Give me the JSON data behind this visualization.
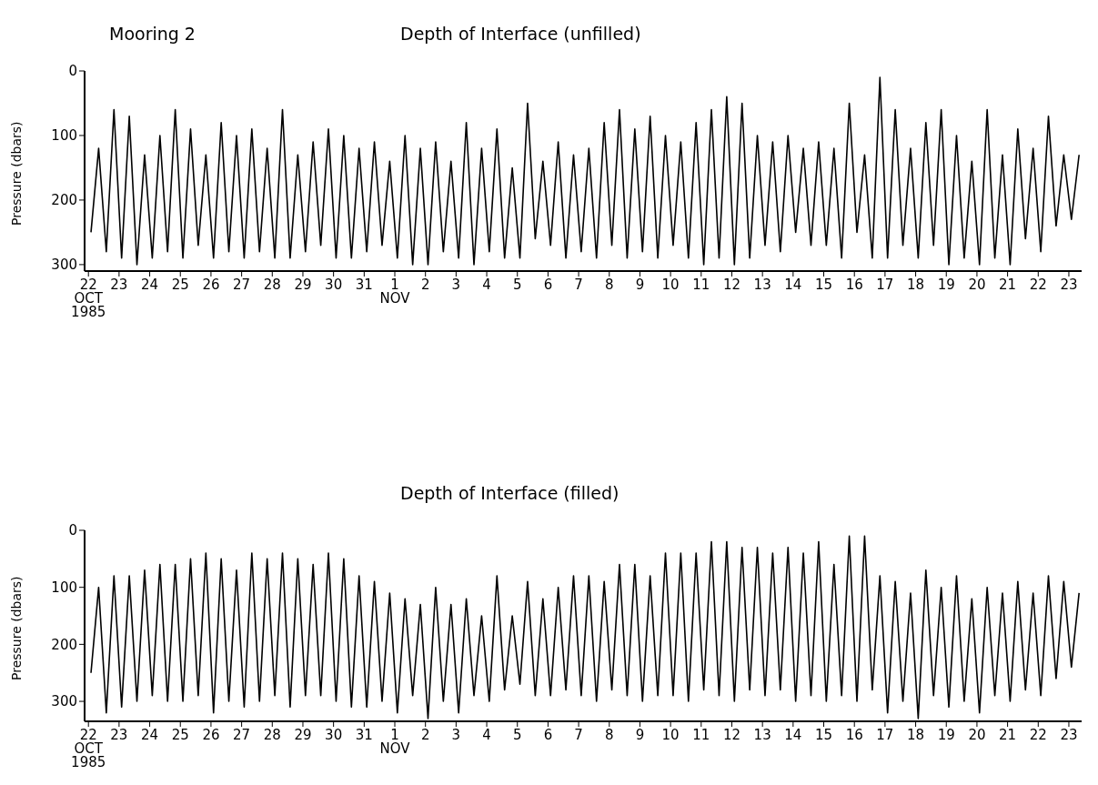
{
  "chart_data": [
    {
      "type": "line",
      "title": "Depth of Interface (unfilled)",
      "subtitle": "Mooring 2",
      "ylabel": "Pressure (dbars)",
      "marker": "none",
      "line_style": "solid",
      "xlim": [
        "1985-10-21T21:00",
        "1985-11-23T10:00"
      ],
      "ylim": [
        310,
        0
      ],
      "yticks": [
        0,
        100,
        200,
        300
      ],
      "xticks": [
        {
          "value": "1985-10-22",
          "label": "22\nOCT\n1985"
        },
        {
          "value": "1985-10-23",
          "label": "23"
        },
        {
          "value": "1985-10-24",
          "label": "24"
        },
        {
          "value": "1985-10-25",
          "label": "25"
        },
        {
          "value": "1985-10-26",
          "label": "26"
        },
        {
          "value": "1985-10-27",
          "label": "27"
        },
        {
          "value": "1985-10-28",
          "label": "28"
        },
        {
          "value": "1985-10-29",
          "label": "29"
        },
        {
          "value": "1985-10-30",
          "label": "30"
        },
        {
          "value": "1985-10-31",
          "label": "31"
        },
        {
          "value": "1985-11-01",
          "label": "1\nNOV"
        },
        {
          "value": "1985-11-02",
          "label": "2"
        },
        {
          "value": "1985-11-03",
          "label": "3"
        },
        {
          "value": "1985-11-04",
          "label": "4"
        },
        {
          "value": "1985-11-05",
          "label": "5"
        },
        {
          "value": "1985-11-06",
          "label": "6"
        },
        {
          "value": "1985-11-07",
          "label": "7"
        },
        {
          "value": "1985-11-08",
          "label": "8"
        },
        {
          "value": "1985-11-09",
          "label": "9"
        },
        {
          "value": "1985-11-10",
          "label": "10"
        },
        {
          "value": "1985-11-11",
          "label": "11"
        },
        {
          "value": "1985-11-12",
          "label": "12"
        },
        {
          "value": "1985-11-13",
          "label": "13"
        },
        {
          "value": "1985-11-14",
          "label": "14"
        },
        {
          "value": "1985-11-15",
          "label": "15"
        },
        {
          "value": "1985-11-16",
          "label": "16"
        },
        {
          "value": "1985-11-17",
          "label": "17"
        },
        {
          "value": "1985-11-18",
          "label": "18"
        },
        {
          "value": "1985-11-19",
          "label": "19"
        },
        {
          "value": "1985-11-20",
          "label": "20"
        },
        {
          "value": "1985-11-21",
          "label": "21"
        },
        {
          "value": "1985-11-22",
          "label": "22"
        },
        {
          "value": "1985-11-23",
          "label": "23"
        }
      ],
      "x": [
        "1985-10-22T02:00",
        "1985-10-22T08:00",
        "1985-10-22T14:00",
        "1985-10-22T20:00",
        "1985-10-23T02:00",
        "1985-10-23T08:00",
        "1985-10-23T14:00",
        "1985-10-23T20:00",
        "1985-10-24T02:00",
        "1985-10-24T08:00",
        "1985-10-24T14:00",
        "1985-10-24T20:00",
        "1985-10-25T02:00",
        "1985-10-25T08:00",
        "1985-10-25T14:00",
        "1985-10-25T20:00",
        "1985-10-26T02:00",
        "1985-10-26T08:00",
        "1985-10-26T14:00",
        "1985-10-26T20:00",
        "1985-10-27T02:00",
        "1985-10-27T08:00",
        "1985-10-27T14:00",
        "1985-10-27T20:00",
        "1985-10-28T02:00",
        "1985-10-28T08:00",
        "1985-10-28T14:00",
        "1985-10-28T20:00",
        "1985-10-29T02:00",
        "1985-10-29T08:00",
        "1985-10-29T14:00",
        "1985-10-29T20:00",
        "1985-10-30T02:00",
        "1985-10-30T08:00",
        "1985-10-30T14:00",
        "1985-10-30T20:00",
        "1985-10-31T02:00",
        "1985-10-31T08:00",
        "1985-10-31T14:00",
        "1985-10-31T20:00",
        "1985-11-01T02:00",
        "1985-11-01T08:00",
        "1985-11-01T14:00",
        "1985-11-01T20:00",
        "1985-11-02T02:00",
        "1985-11-02T08:00",
        "1985-11-02T14:00",
        "1985-11-02T20:00",
        "1985-11-03T02:00",
        "1985-11-03T08:00",
        "1985-11-03T14:00",
        "1985-11-03T20:00",
        "1985-11-04T02:00",
        "1985-11-04T08:00",
        "1985-11-04T14:00",
        "1985-11-04T20:00",
        "1985-11-05T02:00",
        "1985-11-05T08:00",
        "1985-11-05T14:00",
        "1985-11-05T20:00",
        "1985-11-06T02:00",
        "1985-11-06T08:00",
        "1985-11-06T14:00",
        "1985-11-06T20:00",
        "1985-11-07T02:00",
        "1985-11-07T08:00",
        "1985-11-07T14:00",
        "1985-11-07T20:00",
        "1985-11-08T02:00",
        "1985-11-08T08:00",
        "1985-11-08T14:00",
        "1985-11-08T20:00",
        "1985-11-09T02:00",
        "1985-11-09T08:00",
        "1985-11-09T14:00",
        "1985-11-09T20:00",
        "1985-11-10T02:00",
        "1985-11-10T08:00",
        "1985-11-10T14:00",
        "1985-11-10T20:00",
        "1985-11-11T02:00",
        "1985-11-11T08:00",
        "1985-11-11T14:00",
        "1985-11-11T20:00",
        "1985-11-12T02:00",
        "1985-11-12T08:00",
        "1985-11-12T14:00",
        "1985-11-12T20:00",
        "1985-11-13T02:00",
        "1985-11-13T08:00",
        "1985-11-13T14:00",
        "1985-11-13T20:00",
        "1985-11-14T02:00",
        "1985-11-14T08:00",
        "1985-11-14T14:00",
        "1985-11-14T20:00",
        "1985-11-15T02:00",
        "1985-11-15T08:00",
        "1985-11-15T14:00",
        "1985-11-15T20:00",
        "1985-11-16T02:00",
        "1985-11-16T08:00",
        "1985-11-16T14:00",
        "1985-11-16T20:00",
        "1985-11-17T02:00",
        "1985-11-17T08:00",
        "1985-11-17T14:00",
        "1985-11-17T20:00",
        "1985-11-18T02:00",
        "1985-11-18T08:00",
        "1985-11-18T14:00",
        "1985-11-18T20:00",
        "1985-11-19T02:00",
        "1985-11-19T08:00",
        "1985-11-19T14:00",
        "1985-11-19T20:00",
        "1985-11-20T02:00",
        "1985-11-20T08:00",
        "1985-11-20T14:00",
        "1985-11-20T20:00",
        "1985-11-21T02:00",
        "1985-11-21T08:00",
        "1985-11-21T14:00",
        "1985-11-21T20:00",
        "1985-11-22T02:00",
        "1985-11-22T08:00",
        "1985-11-22T14:00",
        "1985-11-22T20:00",
        "1985-11-23T02:00",
        "1985-11-23T08:00"
      ],
      "series": [
        {
          "color": "#000000",
          "values": [
            250,
            120,
            280,
            60,
            290,
            70,
            300,
            130,
            290,
            100,
            280,
            60,
            290,
            90,
            270,
            130,
            290,
            80,
            280,
            100,
            290,
            90,
            280,
            120,
            290,
            60,
            290,
            130,
            280,
            110,
            270,
            90,
            290,
            100,
            290,
            120,
            280,
            110,
            270,
            140,
            290,
            100,
            300,
            120,
            300,
            110,
            280,
            140,
            290,
            80,
            300,
            120,
            280,
            90,
            290,
            150,
            290,
            50,
            260,
            140,
            270,
            110,
            290,
            130,
            280,
            120,
            290,
            80,
            270,
            60,
            290,
            90,
            280,
            70,
            290,
            100,
            270,
            110,
            290,
            80,
            300,
            60,
            290,
            40,
            300,
            50,
            290,
            100,
            270,
            110,
            280,
            100,
            250,
            120,
            270,
            110,
            270,
            120,
            290,
            50,
            250,
            130,
            290,
            10,
            290,
            60,
            270,
            120,
            290,
            80,
            270,
            60,
            300,
            100,
            290,
            140,
            300,
            60,
            290,
            130,
            300,
            90,
            260,
            120,
            280,
            70,
            240,
            130,
            230,
            130
          ]
        }
      ]
    },
    {
      "type": "line",
      "title": "Depth of Interface (filled)",
      "ylabel": "Pressure (dbars)",
      "marker": "none",
      "line_style": "solid",
      "xlim": [
        "1985-10-21T21:00",
        "1985-11-23T10:00"
      ],
      "ylim": [
        335,
        0
      ],
      "yticks": [
        0,
        100,
        200,
        300
      ],
      "xticks": [
        {
          "value": "1985-10-22",
          "label": "22\nOCT\n1985"
        },
        {
          "value": "1985-10-23",
          "label": "23"
        },
        {
          "value": "1985-10-24",
          "label": "24"
        },
        {
          "value": "1985-10-25",
          "label": "25"
        },
        {
          "value": "1985-10-26",
          "label": "26"
        },
        {
          "value": "1985-10-27",
          "label": "27"
        },
        {
          "value": "1985-10-28",
          "label": "28"
        },
        {
          "value": "1985-10-29",
          "label": "29"
        },
        {
          "value": "1985-10-30",
          "label": "30"
        },
        {
          "value": "1985-10-31",
          "label": "31"
        },
        {
          "value": "1985-11-01",
          "label": "1\nNOV"
        },
        {
          "value": "1985-11-02",
          "label": "2"
        },
        {
          "value": "1985-11-03",
          "label": "3"
        },
        {
          "value": "1985-11-04",
          "label": "4"
        },
        {
          "value": "1985-11-05",
          "label": "5"
        },
        {
          "value": "1985-11-06",
          "label": "6"
        },
        {
          "value": "1985-11-07",
          "label": "7"
        },
        {
          "value": "1985-11-08",
          "label": "8"
        },
        {
          "value": "1985-11-09",
          "label": "9"
        },
        {
          "value": "1985-11-10",
          "label": "10"
        },
        {
          "value": "1985-11-11",
          "label": "11"
        },
        {
          "value": "1985-11-12",
          "label": "12"
        },
        {
          "value": "1985-11-13",
          "label": "13"
        },
        {
          "value": "1985-11-14",
          "label": "14"
        },
        {
          "value": "1985-11-15",
          "label": "15"
        },
        {
          "value": "1985-11-16",
          "label": "16"
        },
        {
          "value": "1985-11-17",
          "label": "17"
        },
        {
          "value": "1985-11-18",
          "label": "18"
        },
        {
          "value": "1985-11-19",
          "label": "19"
        },
        {
          "value": "1985-11-20",
          "label": "20"
        },
        {
          "value": "1985-11-21",
          "label": "21"
        },
        {
          "value": "1985-11-22",
          "label": "22"
        },
        {
          "value": "1985-11-23",
          "label": "23"
        }
      ],
      "x": [
        "1985-10-22T02:00",
        "1985-10-22T08:00",
        "1985-10-22T14:00",
        "1985-10-22T20:00",
        "1985-10-23T02:00",
        "1985-10-23T08:00",
        "1985-10-23T14:00",
        "1985-10-23T20:00",
        "1985-10-24T02:00",
        "1985-10-24T08:00",
        "1985-10-24T14:00",
        "1985-10-24T20:00",
        "1985-10-25T02:00",
        "1985-10-25T08:00",
        "1985-10-25T14:00",
        "1985-10-25T20:00",
        "1985-10-26T02:00",
        "1985-10-26T08:00",
        "1985-10-26T14:00",
        "1985-10-26T20:00",
        "1985-10-27T02:00",
        "1985-10-27T08:00",
        "1985-10-27T14:00",
        "1985-10-27T20:00",
        "1985-10-28T02:00",
        "1985-10-28T08:00",
        "1985-10-28T14:00",
        "1985-10-28T20:00",
        "1985-10-29T02:00",
        "1985-10-29T08:00",
        "1985-10-29T14:00",
        "1985-10-29T20:00",
        "1985-10-30T02:00",
        "1985-10-30T08:00",
        "1985-10-30T14:00",
        "1985-10-30T20:00",
        "1985-10-31T02:00",
        "1985-10-31T08:00",
        "1985-10-31T14:00",
        "1985-10-31T20:00",
        "1985-11-01T02:00",
        "1985-11-01T08:00",
        "1985-11-01T14:00",
        "1985-11-01T20:00",
        "1985-11-02T02:00",
        "1985-11-02T08:00",
        "1985-11-02T14:00",
        "1985-11-02T20:00",
        "1985-11-03T02:00",
        "1985-11-03T08:00",
        "1985-11-03T14:00",
        "1985-11-03T20:00",
        "1985-11-04T02:00",
        "1985-11-04T08:00",
        "1985-11-04T14:00",
        "1985-11-04T20:00",
        "1985-11-05T02:00",
        "1985-11-05T08:00",
        "1985-11-05T14:00",
        "1985-11-05T20:00",
        "1985-11-06T02:00",
        "1985-11-06T08:00",
        "1985-11-06T14:00",
        "1985-11-06T20:00",
        "1985-11-07T02:00",
        "1985-11-07T08:00",
        "1985-11-07T14:00",
        "1985-11-07T20:00",
        "1985-11-08T02:00",
        "1985-11-08T08:00",
        "1985-11-08T14:00",
        "1985-11-08T20:00",
        "1985-11-09T02:00",
        "1985-11-09T08:00",
        "1985-11-09T14:00",
        "1985-11-09T20:00",
        "1985-11-10T02:00",
        "1985-11-10T08:00",
        "1985-11-10T14:00",
        "1985-11-10T20:00",
        "1985-11-11T02:00",
        "1985-11-11T08:00",
        "1985-11-11T14:00",
        "1985-11-11T20:00",
        "1985-11-12T02:00",
        "1985-11-12T08:00",
        "1985-11-12T14:00",
        "1985-11-12T20:00",
        "1985-11-13T02:00",
        "1985-11-13T08:00",
        "1985-11-13T14:00",
        "1985-11-13T20:00",
        "1985-11-14T02:00",
        "1985-11-14T08:00",
        "1985-11-14T14:00",
        "1985-11-14T20:00",
        "1985-11-15T02:00",
        "1985-11-15T08:00",
        "1985-11-15T14:00",
        "1985-11-15T20:00",
        "1985-11-16T02:00",
        "1985-11-16T08:00",
        "1985-11-16T14:00",
        "1985-11-16T20:00",
        "1985-11-17T02:00",
        "1985-11-17T08:00",
        "1985-11-17T14:00",
        "1985-11-17T20:00",
        "1985-11-18T02:00",
        "1985-11-18T08:00",
        "1985-11-18T14:00",
        "1985-11-18T20:00",
        "1985-11-19T02:00",
        "1985-11-19T08:00",
        "1985-11-19T14:00",
        "1985-11-19T20:00",
        "1985-11-20T02:00",
        "1985-11-20T08:00",
        "1985-11-20T14:00",
        "1985-11-20T20:00",
        "1985-11-21T02:00",
        "1985-11-21T08:00",
        "1985-11-21T14:00",
        "1985-11-21T20:00",
        "1985-11-22T02:00",
        "1985-11-22T08:00",
        "1985-11-22T14:00",
        "1985-11-22T20:00",
        "1985-11-23T02:00",
        "1985-11-23T08:00"
      ],
      "series": [
        {
          "color": "#000000",
          "values": [
            250,
            100,
            320,
            80,
            310,
            80,
            300,
            70,
            290,
            60,
            300,
            60,
            300,
            50,
            290,
            40,
            320,
            50,
            300,
            70,
            310,
            40,
            300,
            50,
            290,
            40,
            310,
            50,
            290,
            60,
            290,
            40,
            300,
            50,
            310,
            80,
            310,
            90,
            300,
            110,
            320,
            120,
            290,
            130,
            330,
            100,
            300,
            130,
            320,
            120,
            290,
            150,
            300,
            80,
            280,
            150,
            270,
            90,
            290,
            120,
            290,
            100,
            280,
            80,
            290,
            80,
            300,
            90,
            280,
            60,
            290,
            60,
            300,
            80,
            290,
            40,
            290,
            40,
            300,
            40,
            280,
            20,
            290,
            20,
            300,
            30,
            280,
            30,
            290,
            40,
            280,
            30,
            300,
            40,
            290,
            20,
            300,
            60,
            290,
            10,
            300,
            10,
            280,
            80,
            320,
            90,
            300,
            110,
            330,
            70,
            290,
            100,
            310,
            80,
            300,
            120,
            320,
            100,
            290,
            110,
            300,
            90,
            280,
            110,
            290,
            80,
            260,
            90,
            240,
            110
          ]
        }
      ]
    }
  ]
}
